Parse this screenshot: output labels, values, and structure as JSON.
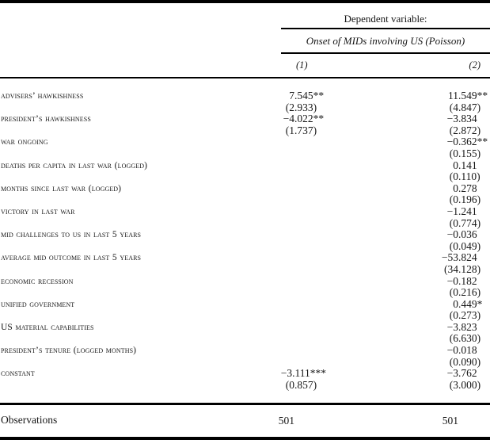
{
  "colors": {
    "background": "#ffffff",
    "text": "#161616",
    "rule": "#000000"
  },
  "table": {
    "header": {
      "dependent_variable_label": "Dependent variable:",
      "model_title": "Onset of MIDs involving US (Poisson)",
      "column_headers": [
        "(1)",
        "(2)"
      ]
    },
    "rows": [
      {
        "label": "advisers’ hawkishness",
        "c1": "7.545**",
        "se1": "(2.933)",
        "c2": "11.549**",
        "se2": "(4.847)"
      },
      {
        "label": "president’s hawkishness",
        "c1": "−4.022**",
        "se1": "(1.737)",
        "c2": "−3.834",
        "se2": "(2.872)"
      },
      {
        "label": "war ongoing",
        "c1": "",
        "se1": "",
        "c2": "−0.362**",
        "se2": "(0.155)"
      },
      {
        "label": "deaths per capita in last war (logged)",
        "c1": "",
        "se1": "",
        "c2": "0.141",
        "se2": "(0.110)"
      },
      {
        "label": "months since last war (logged)",
        "c1": "",
        "se1": "",
        "c2": "0.278",
        "se2": "(0.196)"
      },
      {
        "label": "victory in last war",
        "c1": "",
        "se1": "",
        "c2": "−1.241",
        "se2": "(0.774)"
      },
      {
        "label": "mid challenges to us in last 5 years",
        "c1": "",
        "se1": "",
        "c2": "−0.036",
        "se2": "(0.049)"
      },
      {
        "label": "average mid outcome in last 5 years",
        "c1": "",
        "se1": "",
        "c2": "−53.824",
        "se2": "(34.128)"
      },
      {
        "label": "economic recession",
        "c1": "",
        "se1": "",
        "c2": "−0.182",
        "se2": "(0.216)"
      },
      {
        "label": "unified government",
        "c1": "",
        "se1": "",
        "c2": "0.449*",
        "se2": "(0.273)"
      },
      {
        "label": "US material capabilities",
        "c1": "",
        "se1": "",
        "c2": "−3.823",
        "se2": "(6.630)"
      },
      {
        "label": "president’s tenure (logged months)",
        "c1": "",
        "se1": "",
        "c2": "−0.018",
        "se2": "(0.090)"
      },
      {
        "label": "constant",
        "c1": "−3.111***",
        "se1": "(0.857)",
        "c2": "−3.762",
        "se2": "(3.000)"
      }
    ],
    "footer": {
      "label": "Observations",
      "c1": "501",
      "c2": "501"
    }
  }
}
